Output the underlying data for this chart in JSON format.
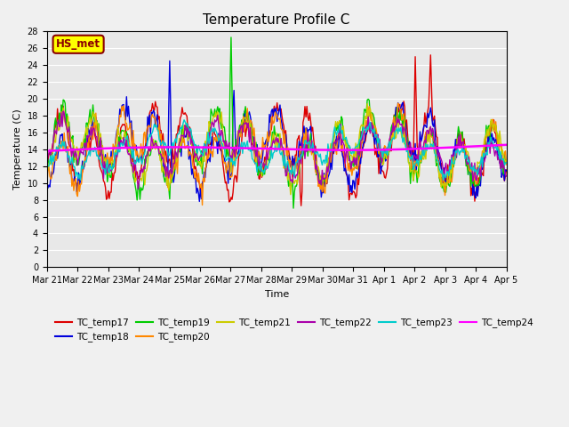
{
  "title": "Temperature Profile C",
  "xlabel": "Time",
  "ylabel": "Temperature (C)",
  "ylim": [
    0,
    28
  ],
  "yticks": [
    0,
    2,
    4,
    6,
    8,
    10,
    12,
    14,
    16,
    18,
    20,
    22,
    24,
    26,
    28
  ],
  "series_colors": {
    "TC_temp17": "#dd0000",
    "TC_temp18": "#0000dd",
    "TC_temp19": "#00cc00",
    "TC_temp20": "#ff8800",
    "TC_temp21": "#cccc00",
    "TC_temp22": "#aa00aa",
    "TC_temp23": "#00cccc",
    "TC_temp24": "#ff00ff"
  },
  "legend_label": "HS_met",
  "legend_box_facecolor": "#ffff00",
  "legend_box_edgecolor": "#8b0000",
  "plot_bg": "#e8e8e8",
  "fig_bg": "#f0f0f0",
  "date_labels": [
    "Mar 21",
    "Mar 22",
    "Mar 23",
    "Mar 24",
    "Mar 25",
    "Mar 26",
    "Mar 27",
    "Mar 28",
    "Mar 29",
    "Mar 30",
    "Mar 31",
    "Apr 1",
    "Apr 2",
    "Apr 3",
    "Apr 4",
    "Apr 5"
  ]
}
